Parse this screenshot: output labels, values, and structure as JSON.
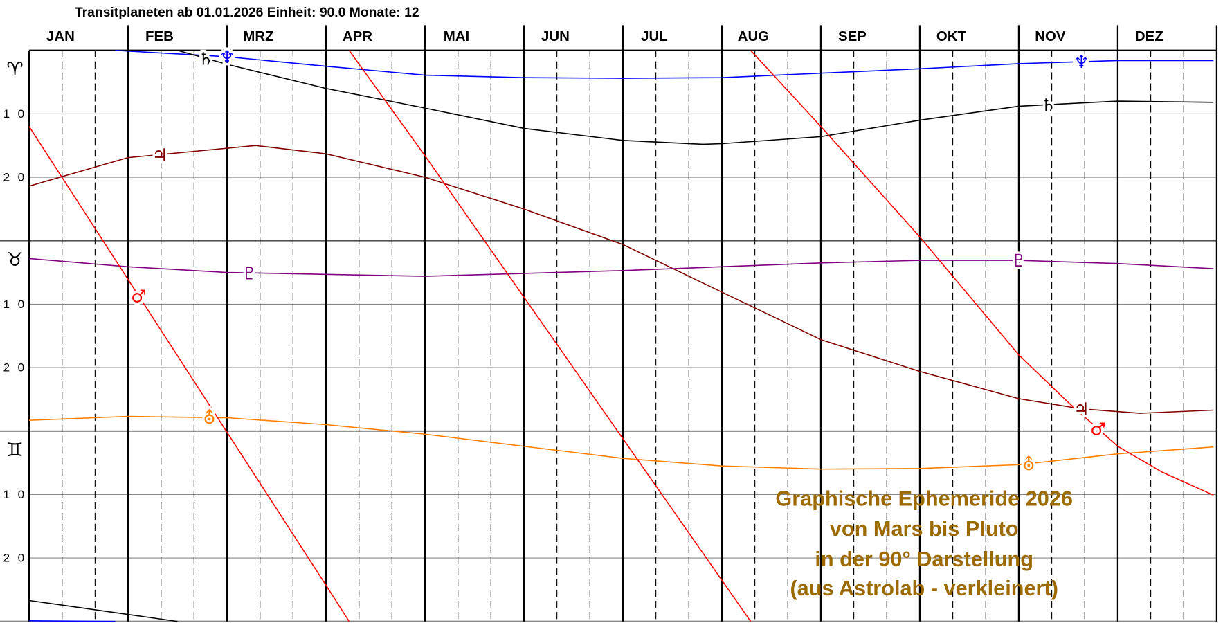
{
  "header": {
    "title": "Transitplaneten ab 01.01.2026  Einheit: 90.0  Monate:  12"
  },
  "chart_data": {
    "type": "line",
    "xlabel": "",
    "ylabel": "",
    "x_range": [
      "2026-01-01",
      "2026-12-31"
    ],
    "ylim": [
      0,
      90
    ],
    "y_inverted": true,
    "grid": true,
    "months": [
      "JAN",
      "FEB",
      "MRZ",
      "APR",
      "MAI",
      "JUN",
      "JUL",
      "AUG",
      "SEP",
      "OKT",
      "NOV",
      "DEZ"
    ],
    "sign_bands": [
      {
        "glyph": "♈",
        "start": 0
      },
      {
        "glyph": "♉",
        "start": 30
      },
      {
        "glyph": "♊",
        "start": 60
      }
    ],
    "y_tick_labels": [
      {
        "value": 10,
        "label": "1 0"
      },
      {
        "value": 20,
        "label": "2 0"
      },
      {
        "value": 40,
        "label": "1 0"
      },
      {
        "value": 50,
        "label": "2 0"
      },
      {
        "value": 70,
        "label": "1 0"
      },
      {
        "value": 80,
        "label": "2 0"
      }
    ],
    "series": [
      {
        "planet": "Neptune",
        "glyph": "♆",
        "color": "#0000ff",
        "label_dates": [
          "2026-03-01",
          "2026-11-20"
        ],
        "points": [
          [
            "2026-01-01",
            89.9
          ],
          [
            "2026-01-28",
            90.0
          ],
          [
            "2026-01-28",
            0.0
          ],
          [
            "2026-03-01",
            1.0
          ],
          [
            "2026-04-01",
            2.5
          ],
          [
            "2026-05-01",
            3.9
          ],
          [
            "2026-06-01",
            4.3
          ],
          [
            "2026-07-01",
            4.4
          ],
          [
            "2026-08-01",
            4.3
          ],
          [
            "2026-09-01",
            3.6
          ],
          [
            "2026-10-01",
            2.9
          ],
          [
            "2026-11-01",
            2.1
          ],
          [
            "2026-12-01",
            1.6
          ],
          [
            "2026-12-31",
            1.6
          ]
        ]
      },
      {
        "planet": "Saturn",
        "glyph": "♄",
        "color": "#000000",
        "label_dates": [
          "2026-02-23",
          "2026-11-10"
        ],
        "points": [
          [
            "2026-01-01",
            86.7
          ],
          [
            "2026-02-15",
            90.0
          ],
          [
            "2026-02-15",
            0.0
          ],
          [
            "2026-03-01",
            2.2
          ],
          [
            "2026-04-01",
            6.0
          ],
          [
            "2026-05-01",
            9.1
          ],
          [
            "2026-06-01",
            12.3
          ],
          [
            "2026-07-01",
            14.2
          ],
          [
            "2026-07-26",
            14.8
          ],
          [
            "2026-08-01",
            14.7
          ],
          [
            "2026-09-01",
            13.6
          ],
          [
            "2026-10-01",
            11.0
          ],
          [
            "2026-11-01",
            8.8
          ],
          [
            "2026-12-01",
            8.0
          ],
          [
            "2026-12-31",
            8.2
          ]
        ]
      },
      {
        "planet": "Jupiter",
        "glyph": "♃",
        "color": "#800000",
        "label_dates": [
          "2026-02-10",
          "2026-11-20"
        ],
        "points": [
          [
            "2026-01-01",
            21.4
          ],
          [
            "2026-02-01",
            16.9
          ],
          [
            "2026-03-10",
            15.0
          ],
          [
            "2026-04-01",
            16.3
          ],
          [
            "2026-05-01",
            20.0
          ],
          [
            "2026-06-01",
            25.0
          ],
          [
            "2026-07-01",
            30.6
          ],
          [
            "2026-08-01",
            38.1
          ],
          [
            "2026-09-01",
            45.6
          ],
          [
            "2026-10-01",
            50.6
          ],
          [
            "2026-11-01",
            54.9
          ],
          [
            "2026-11-20",
            56.5
          ],
          [
            "2026-12-08",
            57.2
          ],
          [
            "2026-12-31",
            56.7
          ]
        ]
      },
      {
        "planet": "Pluto",
        "glyph": "♇",
        "color": "#800080",
        "label_dates": [
          "2026-03-08",
          "2026-11-01"
        ],
        "points": [
          [
            "2026-01-01",
            32.8
          ],
          [
            "2026-02-01",
            34.1
          ],
          [
            "2026-03-01",
            35.0
          ],
          [
            "2026-05-01",
            35.6
          ],
          [
            "2026-07-01",
            34.7
          ],
          [
            "2026-09-01",
            33.5
          ],
          [
            "2026-10-01",
            33.1
          ],
          [
            "2026-11-01",
            33.1
          ],
          [
            "2026-12-01",
            33.6
          ],
          [
            "2026-12-31",
            34.4
          ]
        ]
      },
      {
        "planet": "Uranus",
        "glyph": "⛢",
        "color": "#ff8000",
        "label_dates": [
          "2026-02-24",
          "2026-11-04"
        ],
        "points": [
          [
            "2026-01-01",
            58.3
          ],
          [
            "2026-02-01",
            57.7
          ],
          [
            "2026-03-01",
            57.9
          ],
          [
            "2026-04-01",
            59.0
          ],
          [
            "2026-05-01",
            60.5
          ],
          [
            "2026-06-01",
            62.4
          ],
          [
            "2026-07-01",
            64.3
          ],
          [
            "2026-08-01",
            65.5
          ],
          [
            "2026-09-01",
            66.0
          ],
          [
            "2026-10-01",
            65.9
          ],
          [
            "2026-11-01",
            65.3
          ],
          [
            "2026-12-01",
            63.6
          ],
          [
            "2026-12-31",
            62.5
          ]
        ]
      },
      {
        "planet": "Mars",
        "glyph": "♂",
        "color": "#ff0000",
        "label_dates": [
          "2026-02-04",
          "2026-11-25"
        ],
        "points": [
          [
            "2026-01-01",
            12.0
          ],
          [
            "2026-02-01",
            36.1
          ],
          [
            "2026-03-01",
            60.2
          ],
          [
            "2026-04-01",
            84.3
          ],
          [
            "2026-04-08",
            90.0
          ],
          [
            "2026-04-08",
            0.0
          ],
          [
            "2026-05-01",
            16.6
          ],
          [
            "2026-06-01",
            38.9
          ],
          [
            "2026-07-01",
            61.2
          ],
          [
            "2026-08-01",
            83.5
          ],
          [
            "2026-08-10",
            90.0
          ],
          [
            "2026-08-10",
            0.0
          ],
          [
            "2026-09-01",
            12.0
          ],
          [
            "2026-10-01",
            29.4
          ],
          [
            "2026-11-01",
            48.0
          ],
          [
            "2026-11-16",
            55.5
          ],
          [
            "2026-12-01",
            62.4
          ],
          [
            "2026-12-15",
            66.5
          ],
          [
            "2026-12-31",
            70.1
          ]
        ]
      }
    ]
  },
  "annotation": {
    "color": "#9c6a00",
    "lines": [
      "Graphische Ephemeride 2026",
      "von Mars bis Pluto",
      "in der 90° Darstellung",
      "(aus Astrolab - verkleinert)"
    ]
  }
}
